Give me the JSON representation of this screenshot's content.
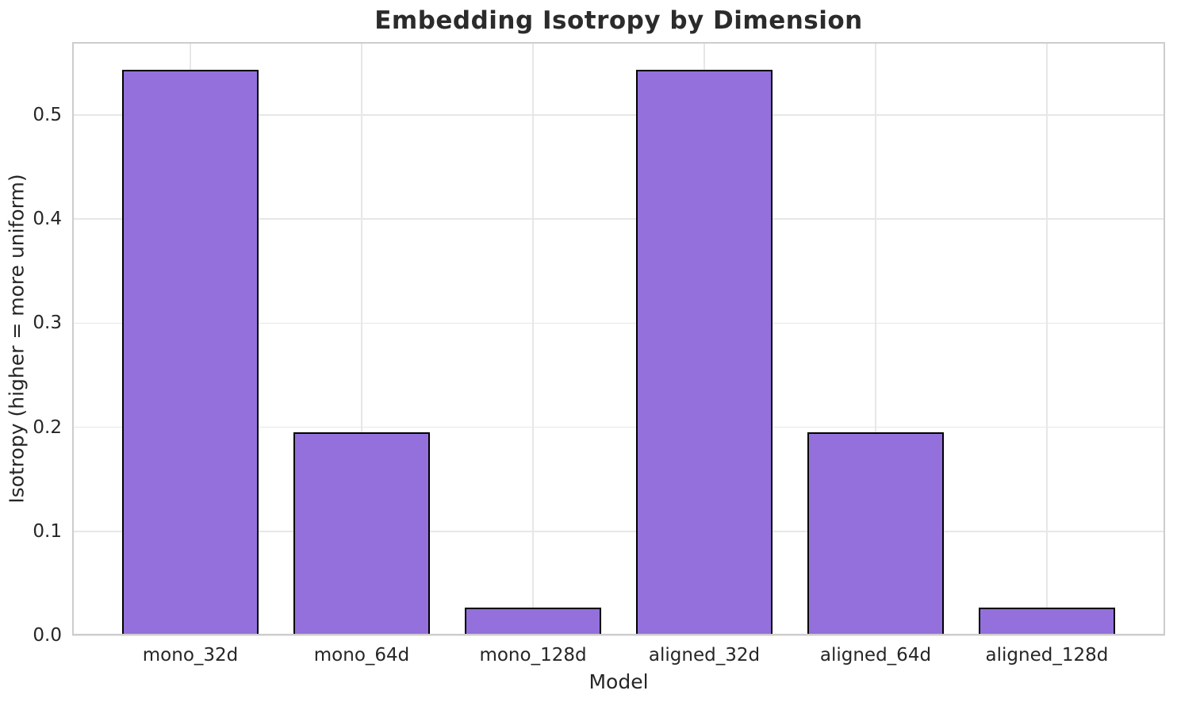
{
  "chart_data": {
    "type": "bar",
    "title": "Embedding Isotropy by Dimension",
    "xlabel": "Model",
    "ylabel": "Isotropy (higher = more uniform)",
    "categories": [
      "mono_32d",
      "mono_64d",
      "mono_128d",
      "aligned_32d",
      "aligned_64d",
      "aligned_128d"
    ],
    "values": [
      0.543,
      0.195,
      0.027,
      0.543,
      0.195,
      0.027
    ],
    "yticks": [
      0.0,
      0.1,
      0.2,
      0.3,
      0.4,
      0.5
    ],
    "ytick_labels": [
      "0.0",
      "0.1",
      "0.2",
      "0.3",
      "0.4",
      "0.5"
    ],
    "ylim": [
      0,
      0.57
    ],
    "xlim": [
      -0.69,
      5.69
    ],
    "bar_width": 0.8,
    "grid": true,
    "legend": "none",
    "colors": {
      "bar_fill": "#9370DB",
      "bar_edge": "#000000",
      "grid": "#e7e7e7",
      "spine": "#cdcdcd",
      "text": "#262626",
      "title": "#2b2b2b",
      "background": "#ffffff"
    }
  }
}
